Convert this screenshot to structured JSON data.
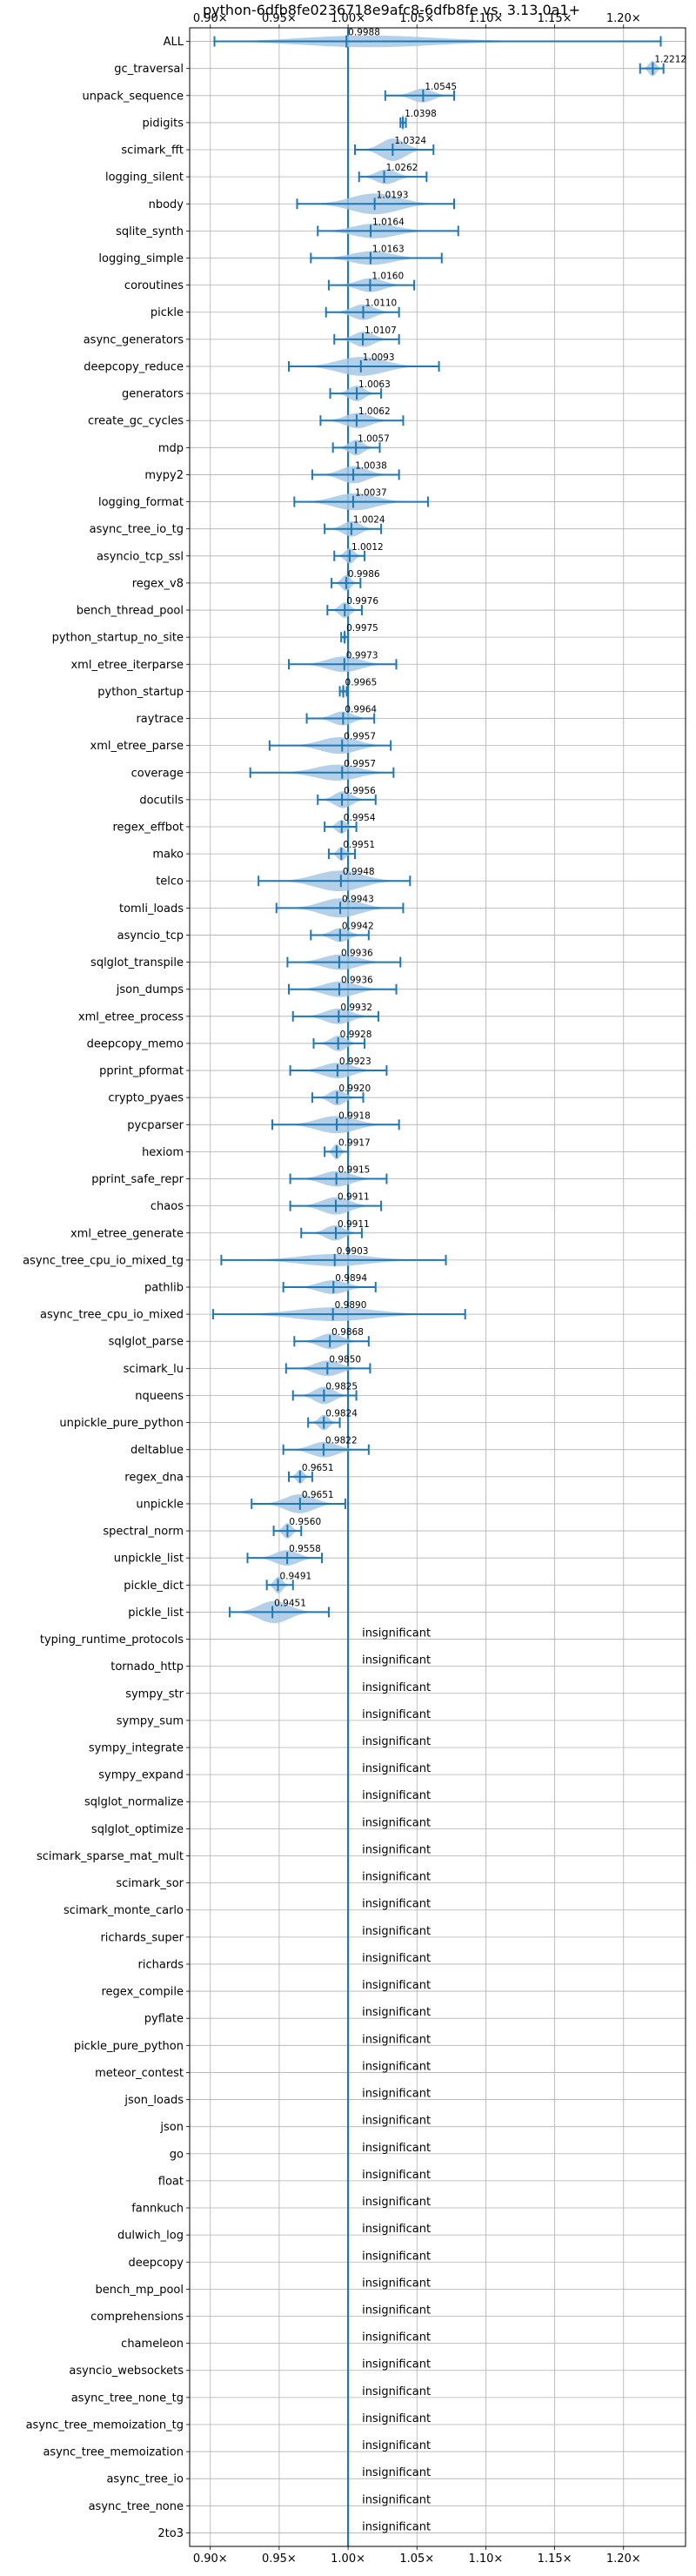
{
  "chart_data": {
    "type": "violin",
    "title": "python-6dfb8fe0236718e9afc8-6dfb8fe vs. 3.13.0a1+",
    "xlabel": "",
    "ylabel": "",
    "xlim": [
      0.885,
      1.245
    ],
    "xticks": [
      0.9,
      0.95,
      1.0,
      1.05,
      1.1,
      1.15,
      1.2
    ],
    "xtick_labels": [
      "0.90×",
      "0.95×",
      "1.00×",
      "1.05×",
      "1.10×",
      "1.15×",
      "1.20×"
    ],
    "grid": true,
    "reference_line": 1.0,
    "insignificant_label": "insignificant",
    "colors": {
      "line": "#1f77b4",
      "violin": "#a6c8e4",
      "grid": "#b0b0b0"
    },
    "benchmarks": [
      {
        "name": "ALL",
        "value": 0.9988,
        "label": "0.9988",
        "min": 0.903,
        "max": 1.227,
        "w": 8
      },
      {
        "name": "gc_traversal",
        "value": 1.2212,
        "label": "1.2212",
        "min": 1.212,
        "max": 1.229,
        "w": 9
      },
      {
        "name": "unpack_sequence",
        "value": 1.0545,
        "label": "1.0545",
        "min": 1.027,
        "max": 1.077,
        "w": 8
      },
      {
        "name": "pidigits",
        "value": 1.0398,
        "label": "1.0398",
        "min": 1.038,
        "max": 1.042,
        "w": 10
      },
      {
        "name": "scimark_fft",
        "value": 1.0324,
        "label": "1.0324",
        "min": 1.005,
        "max": 1.062,
        "w": 13
      },
      {
        "name": "logging_silent",
        "value": 1.0262,
        "label": "1.0262",
        "min": 1.008,
        "max": 1.057,
        "w": 9
      },
      {
        "name": "nbody",
        "value": 1.0193,
        "label": "1.0193",
        "min": 0.963,
        "max": 1.077,
        "w": 12
      },
      {
        "name": "sqlite_synth",
        "value": 1.0164,
        "label": "1.0164",
        "min": 0.978,
        "max": 1.08,
        "w": 9
      },
      {
        "name": "logging_simple",
        "value": 1.0163,
        "label": "1.0163",
        "min": 0.973,
        "max": 1.068,
        "w": 8
      },
      {
        "name": "coroutines",
        "value": 1.016,
        "label": "1.0160",
        "min": 0.986,
        "max": 1.048,
        "w": 8
      },
      {
        "name": "pickle",
        "value": 1.011,
        "label": "1.0110",
        "min": 0.984,
        "max": 1.037,
        "w": 9
      },
      {
        "name": "async_generators",
        "value": 1.0107,
        "label": "1.0107",
        "min": 0.99,
        "max": 1.037,
        "w": 9
      },
      {
        "name": "deepcopy_reduce",
        "value": 1.0093,
        "label": "1.0093",
        "min": 0.957,
        "max": 1.066,
        "w": 11
      },
      {
        "name": "generators",
        "value": 1.0063,
        "label": "1.0063",
        "min": 0.987,
        "max": 1.024,
        "w": 9
      },
      {
        "name": "create_gc_cycles",
        "value": 1.0062,
        "label": "1.0062",
        "min": 0.98,
        "max": 1.04,
        "w": 9
      },
      {
        "name": "mdp",
        "value": 1.0057,
        "label": "1.0057",
        "min": 0.989,
        "max": 1.023,
        "w": 9
      },
      {
        "name": "mypy2",
        "value": 1.0038,
        "label": "1.0038",
        "min": 0.974,
        "max": 1.037,
        "w": 10
      },
      {
        "name": "logging_format",
        "value": 1.0037,
        "label": "1.0037",
        "min": 0.961,
        "max": 1.058,
        "w": 10
      },
      {
        "name": "async_tree_io_tg",
        "value": 1.0024,
        "label": "1.0024",
        "min": 0.983,
        "max": 1.024,
        "w": 9
      },
      {
        "name": "asyncio_tcp_ssl",
        "value": 1.0012,
        "label": "1.0012",
        "min": 0.99,
        "max": 1.012,
        "w": 9
      },
      {
        "name": "regex_v8",
        "value": 0.9986,
        "label": "0.9986",
        "min": 0.988,
        "max": 1.009,
        "w": 9
      },
      {
        "name": "bench_thread_pool",
        "value": 0.9976,
        "label": "0.9976",
        "min": 0.985,
        "max": 1.01,
        "w": 9
      },
      {
        "name": "python_startup_no_site",
        "value": 0.9975,
        "label": "0.9975",
        "min": 0.995,
        "max": 1.0,
        "w": 9
      },
      {
        "name": "xml_etree_iterparse",
        "value": 0.9973,
        "label": "0.9973",
        "min": 0.957,
        "max": 1.035,
        "w": 9
      },
      {
        "name": "python_startup",
        "value": 0.9965,
        "label": "0.9965",
        "min": 0.994,
        "max": 0.999,
        "w": 8
      },
      {
        "name": "raytrace",
        "value": 0.9964,
        "label": "0.9964",
        "min": 0.97,
        "max": 1.019,
        "w": 8
      },
      {
        "name": "xml_etree_parse",
        "value": 0.9957,
        "label": "0.9957",
        "min": 0.943,
        "max": 1.031,
        "w": 10
      },
      {
        "name": "coverage",
        "value": 0.9957,
        "label": "0.9957",
        "min": 0.929,
        "max": 1.033,
        "w": 10
      },
      {
        "name": "docutils",
        "value": 0.9956,
        "label": "0.9956",
        "min": 0.978,
        "max": 1.02,
        "w": 10
      },
      {
        "name": "regex_effbot",
        "value": 0.9954,
        "label": "0.9954",
        "min": 0.983,
        "max": 1.006,
        "w": 8
      },
      {
        "name": "mako",
        "value": 0.9951,
        "label": "0.9951",
        "min": 0.986,
        "max": 1.005,
        "w": 8
      },
      {
        "name": "telco",
        "value": 0.9948,
        "label": "0.9948",
        "min": 0.935,
        "max": 1.045,
        "w": 12
      },
      {
        "name": "tomli_loads",
        "value": 0.9943,
        "label": "0.9943",
        "min": 0.948,
        "max": 1.04,
        "w": 11
      },
      {
        "name": "asyncio_tcp",
        "value": 0.9942,
        "label": "0.9942",
        "min": 0.973,
        "max": 1.015,
        "w": 8
      },
      {
        "name": "sqlglot_transpile",
        "value": 0.9936,
        "label": "0.9936",
        "min": 0.956,
        "max": 1.038,
        "w": 9
      },
      {
        "name": "json_dumps",
        "value": 0.9936,
        "label": "0.9936",
        "min": 0.957,
        "max": 1.035,
        "w": 9
      },
      {
        "name": "xml_etree_process",
        "value": 0.9932,
        "label": "0.9932",
        "min": 0.96,
        "max": 1.022,
        "w": 9
      },
      {
        "name": "deepcopy_memo",
        "value": 0.9928,
        "label": "0.9928",
        "min": 0.975,
        "max": 1.012,
        "w": 9
      },
      {
        "name": "pprint_pformat",
        "value": 0.9923,
        "label": "0.9923",
        "min": 0.958,
        "max": 1.028,
        "w": 9
      },
      {
        "name": "crypto_pyaes",
        "value": 0.992,
        "label": "0.9920",
        "min": 0.974,
        "max": 1.011,
        "w": 9
      },
      {
        "name": "pycparser",
        "value": 0.9918,
        "label": "0.9918",
        "min": 0.945,
        "max": 1.037,
        "w": 10
      },
      {
        "name": "hexiom",
        "value": 0.9917,
        "label": "0.9917",
        "min": 0.983,
        "max": 1.0,
        "w": 9
      },
      {
        "name": "pprint_safe_repr",
        "value": 0.9915,
        "label": "0.9915",
        "min": 0.958,
        "max": 1.028,
        "w": 9
      },
      {
        "name": "chaos",
        "value": 0.9911,
        "label": "0.9911",
        "min": 0.958,
        "max": 1.024,
        "w": 10
      },
      {
        "name": "xml_etree_generate",
        "value": 0.9911,
        "label": "0.9911",
        "min": 0.966,
        "max": 1.01,
        "w": 9
      },
      {
        "name": "async_tree_cpu_io_mixed_tg",
        "value": 0.9903,
        "label": "0.9903",
        "min": 0.908,
        "max": 1.071,
        "w": 7
      },
      {
        "name": "pathlib",
        "value": 0.9894,
        "label": "0.9894",
        "min": 0.953,
        "max": 1.02,
        "w": 8
      },
      {
        "name": "async_tree_cpu_io_mixed",
        "value": 0.989,
        "label": "0.9890",
        "min": 0.902,
        "max": 1.085,
        "w": 8
      },
      {
        "name": "sqlglot_parse",
        "value": 0.9868,
        "label": "0.9868",
        "min": 0.961,
        "max": 1.015,
        "w": 9
      },
      {
        "name": "scimark_lu",
        "value": 0.985,
        "label": "0.9850",
        "min": 0.955,
        "max": 1.016,
        "w": 9
      },
      {
        "name": "nqueens",
        "value": 0.9825,
        "label": "0.9825",
        "min": 0.96,
        "max": 1.006,
        "w": 10
      },
      {
        "name": "unpickle_pure_python",
        "value": 0.9824,
        "label": "0.9824",
        "min": 0.971,
        "max": 0.994,
        "w": 9
      },
      {
        "name": "deltablue",
        "value": 0.9822,
        "label": "0.9822",
        "min": 0.953,
        "max": 1.015,
        "w": 9
      },
      {
        "name": "regex_dna",
        "value": 0.9651,
        "label": "0.9651",
        "min": 0.957,
        "max": 0.974,
        "w": 8
      },
      {
        "name": "unpickle",
        "value": 0.9651,
        "label": "0.9651",
        "min": 0.93,
        "max": 0.998,
        "w": 11
      },
      {
        "name": "spectral_norm",
        "value": 0.956,
        "label": "0.9560",
        "min": 0.946,
        "max": 0.966,
        "w": 9
      },
      {
        "name": "unpickle_list",
        "value": 0.9558,
        "label": "0.9558",
        "min": 0.927,
        "max": 0.981,
        "w": 9
      },
      {
        "name": "pickle_dict",
        "value": 0.9491,
        "label": "0.9491",
        "min": 0.941,
        "max": 0.96,
        "w": 10
      },
      {
        "name": "pickle_list",
        "value": 0.9451,
        "label": "0.9451",
        "min": 0.914,
        "max": 0.986,
        "w": 13
      },
      {
        "name": "typing_runtime_protocols",
        "insignificant": true
      },
      {
        "name": "tornado_http",
        "insignificant": true
      },
      {
        "name": "sympy_str",
        "insignificant": true
      },
      {
        "name": "sympy_sum",
        "insignificant": true
      },
      {
        "name": "sympy_integrate",
        "insignificant": true
      },
      {
        "name": "sympy_expand",
        "insignificant": true
      },
      {
        "name": "sqlglot_normalize",
        "insignificant": true
      },
      {
        "name": "sqlglot_optimize",
        "insignificant": true
      },
      {
        "name": "scimark_sparse_mat_mult",
        "insignificant": true
      },
      {
        "name": "scimark_sor",
        "insignificant": true
      },
      {
        "name": "scimark_monte_carlo",
        "insignificant": true
      },
      {
        "name": "richards_super",
        "insignificant": true
      },
      {
        "name": "richards",
        "insignificant": true
      },
      {
        "name": "regex_compile",
        "insignificant": true
      },
      {
        "name": "pyflate",
        "insignificant": true
      },
      {
        "name": "pickle_pure_python",
        "insignificant": true
      },
      {
        "name": "meteor_contest",
        "insignificant": true
      },
      {
        "name": "json_loads",
        "insignificant": true
      },
      {
        "name": "json",
        "insignificant": true
      },
      {
        "name": "go",
        "insignificant": true
      },
      {
        "name": "float",
        "insignificant": true
      },
      {
        "name": "fannkuch",
        "insignificant": true
      },
      {
        "name": "dulwich_log",
        "insignificant": true
      },
      {
        "name": "deepcopy",
        "insignificant": true
      },
      {
        "name": "bench_mp_pool",
        "insignificant": true
      },
      {
        "name": "comprehensions",
        "insignificant": true
      },
      {
        "name": "chameleon",
        "insignificant": true
      },
      {
        "name": "asyncio_websockets",
        "insignificant": true
      },
      {
        "name": "async_tree_none_tg",
        "insignificant": true
      },
      {
        "name": "async_tree_memoization_tg",
        "insignificant": true
      },
      {
        "name": "async_tree_memoization",
        "insignificant": true
      },
      {
        "name": "async_tree_io",
        "insignificant": true
      },
      {
        "name": "async_tree_none",
        "insignificant": true
      },
      {
        "name": "2to3",
        "insignificant": true
      }
    ]
  }
}
